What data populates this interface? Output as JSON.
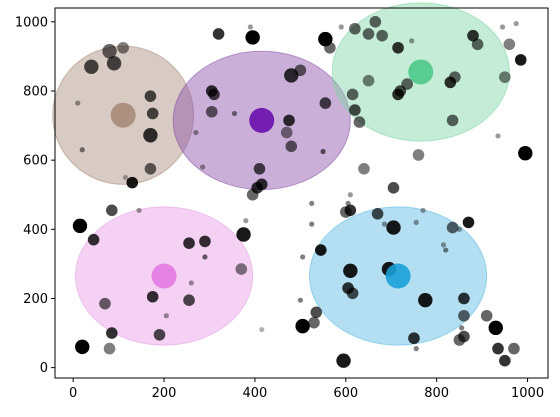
{
  "chart_data": {
    "type": "scatter",
    "title": "",
    "xlabel": "",
    "ylabel": "",
    "xlim": [
      -40,
      1045
    ],
    "ylim": [
      -30,
      1040
    ],
    "x_ticks": [
      0,
      200,
      400,
      600,
      800,
      1000
    ],
    "y_ticks": [
      0,
      200,
      400,
      600,
      800,
      1000
    ],
    "grid": false,
    "legend": "none",
    "clusters": [
      {
        "center": [
          110,
          730
        ],
        "radius_x": 155,
        "radius_y": 200,
        "fill": "#a88b79",
        "center_color": "#a88b79"
      },
      {
        "center": [
          415,
          715
        ],
        "radius_x": 195,
        "radius_y": 200,
        "fill": "#8a4fa8",
        "center_color": "#6a0dad"
      },
      {
        "center": [
          765,
          855
        ],
        "radius_x": 195,
        "radius_y": 200,
        "fill": "#7fd4a4",
        "center_color": "#4cc98a"
      },
      {
        "center": [
          200,
          265
        ],
        "radius_x": 195,
        "radius_y": 200,
        "fill": "#e89be6",
        "center_color": "#e27ae0"
      },
      {
        "center": [
          715,
          265
        ],
        "radius_x": 195,
        "radius_y": 200,
        "fill": "#58b8e3",
        "center_color": "#1aa0d8"
      }
    ],
    "points": [
      {
        "x": 80,
        "y": 915,
        "size": "m",
        "alpha": 0.6
      },
      {
        "x": 90,
        "y": 880,
        "size": "m",
        "alpha": 0.7
      },
      {
        "x": 40,
        "y": 870,
        "size": "m",
        "alpha": 0.7
      },
      {
        "x": 110,
        "y": 925,
        "size": "s",
        "alpha": 0.5
      },
      {
        "x": 170,
        "y": 785,
        "size": "s",
        "alpha": 0.7
      },
      {
        "x": 175,
        "y": 735,
        "size": "s",
        "alpha": 0.7
      },
      {
        "x": 170,
        "y": 672,
        "size": "m",
        "alpha": 0.8
      },
      {
        "x": 10,
        "y": 765,
        "size": "xs",
        "alpha": 0.4
      },
      {
        "x": 20,
        "y": 630,
        "size": "xs",
        "alpha": 0.5
      },
      {
        "x": 170,
        "y": 575,
        "size": "s",
        "alpha": 0.6
      },
      {
        "x": 130,
        "y": 535,
        "size": "s",
        "alpha": 0.9
      },
      {
        "x": 115,
        "y": 550,
        "size": "xs",
        "alpha": 0.3
      },
      {
        "x": 320,
        "y": 965,
        "size": "s",
        "alpha": 0.8
      },
      {
        "x": 390,
        "y": 985,
        "size": "xs",
        "alpha": 0.4
      },
      {
        "x": 395,
        "y": 955,
        "size": "m",
        "alpha": 1.0
      },
      {
        "x": 305,
        "y": 800,
        "size": "s",
        "alpha": 0.8
      },
      {
        "x": 310,
        "y": 790,
        "size": "s",
        "alpha": 0.7
      },
      {
        "x": 305,
        "y": 740,
        "size": "s",
        "alpha": 0.6
      },
      {
        "x": 355,
        "y": 735,
        "size": "xs",
        "alpha": 0.5
      },
      {
        "x": 480,
        "y": 845,
        "size": "m",
        "alpha": 0.8
      },
      {
        "x": 500,
        "y": 860,
        "size": "s",
        "alpha": 0.6
      },
      {
        "x": 555,
        "y": 765,
        "size": "s",
        "alpha": 0.7
      },
      {
        "x": 475,
        "y": 715,
        "size": "s",
        "alpha": 0.8
      },
      {
        "x": 470,
        "y": 680,
        "size": "s",
        "alpha": 0.5
      },
      {
        "x": 480,
        "y": 640,
        "size": "s",
        "alpha": 0.6
      },
      {
        "x": 550,
        "y": 625,
        "size": "xs",
        "alpha": 0.6
      },
      {
        "x": 410,
        "y": 575,
        "size": "s",
        "alpha": 0.7
      },
      {
        "x": 415,
        "y": 530,
        "size": "s",
        "alpha": 0.8
      },
      {
        "x": 405,
        "y": 520,
        "size": "s",
        "alpha": 0.8
      },
      {
        "x": 395,
        "y": 500,
        "size": "s",
        "alpha": 0.6
      },
      {
        "x": 270,
        "y": 680,
        "size": "xs",
        "alpha": 0.4
      },
      {
        "x": 285,
        "y": 580,
        "size": "xs",
        "alpha": 0.4
      },
      {
        "x": 555,
        "y": 950,
        "size": "m",
        "alpha": 1.0
      },
      {
        "x": 565,
        "y": 925,
        "size": "s",
        "alpha": 0.6
      },
      {
        "x": 590,
        "y": 985,
        "size": "xs",
        "alpha": 0.4
      },
      {
        "x": 620,
        "y": 980,
        "size": "s",
        "alpha": 0.6
      },
      {
        "x": 650,
        "y": 965,
        "size": "s",
        "alpha": 0.6
      },
      {
        "x": 665,
        "y": 1000,
        "size": "s",
        "alpha": 0.6
      },
      {
        "x": 680,
        "y": 960,
        "size": "s",
        "alpha": 0.6
      },
      {
        "x": 715,
        "y": 925,
        "size": "s",
        "alpha": 0.8
      },
      {
        "x": 745,
        "y": 945,
        "size": "xs",
        "alpha": 0.4
      },
      {
        "x": 650,
        "y": 830,
        "size": "s",
        "alpha": 0.5
      },
      {
        "x": 615,
        "y": 790,
        "size": "s",
        "alpha": 0.6
      },
      {
        "x": 620,
        "y": 745,
        "size": "s",
        "alpha": 0.7
      },
      {
        "x": 630,
        "y": 710,
        "size": "s",
        "alpha": 0.6
      },
      {
        "x": 715,
        "y": 790,
        "size": "s",
        "alpha": 0.8
      },
      {
        "x": 720,
        "y": 800,
        "size": "s",
        "alpha": 0.7
      },
      {
        "x": 735,
        "y": 820,
        "size": "s",
        "alpha": 0.6
      },
      {
        "x": 830,
        "y": 825,
        "size": "s",
        "alpha": 0.8
      },
      {
        "x": 840,
        "y": 840,
        "size": "s",
        "alpha": 0.6
      },
      {
        "x": 835,
        "y": 715,
        "size": "s",
        "alpha": 0.6
      },
      {
        "x": 880,
        "y": 960,
        "size": "s",
        "alpha": 0.8
      },
      {
        "x": 890,
        "y": 935,
        "size": "s",
        "alpha": 0.6
      },
      {
        "x": 945,
        "y": 985,
        "size": "xs",
        "alpha": 0.4
      },
      {
        "x": 960,
        "y": 935,
        "size": "s",
        "alpha": 0.5
      },
      {
        "x": 950,
        "y": 840,
        "size": "s",
        "alpha": 0.5
      },
      {
        "x": 975,
        "y": 995,
        "size": "xs",
        "alpha": 0.4
      },
      {
        "x": 985,
        "y": 890,
        "size": "s",
        "alpha": 0.9
      },
      {
        "x": 995,
        "y": 620,
        "size": "m",
        "alpha": 1.0
      },
      {
        "x": 935,
        "y": 670,
        "size": "xs",
        "alpha": 0.4
      },
      {
        "x": 760,
        "y": 615,
        "size": "s",
        "alpha": 0.5
      },
      {
        "x": 640,
        "y": 575,
        "size": "s",
        "alpha": 0.5
      },
      {
        "x": 705,
        "y": 520,
        "size": "s",
        "alpha": 0.7
      },
      {
        "x": 610,
        "y": 500,
        "size": "xs",
        "alpha": 0.4
      },
      {
        "x": 605,
        "y": 475,
        "size": "xs",
        "alpha": 0.5
      },
      {
        "x": 610,
        "y": 455,
        "size": "s",
        "alpha": 0.8
      },
      {
        "x": 600,
        "y": 450,
        "size": "s",
        "alpha": 0.6
      },
      {
        "x": 670,
        "y": 445,
        "size": "s",
        "alpha": 0.7
      },
      {
        "x": 525,
        "y": 475,
        "size": "xs",
        "alpha": 0.5
      },
      {
        "x": 525,
        "y": 415,
        "size": "xs",
        "alpha": 0.5
      },
      {
        "x": 15,
        "y": 410,
        "size": "m",
        "alpha": 1.0
      },
      {
        "x": 85,
        "y": 455,
        "size": "s",
        "alpha": 0.7
      },
      {
        "x": 145,
        "y": 455,
        "size": "xs",
        "alpha": 0.4
      },
      {
        "x": 45,
        "y": 370,
        "size": "s",
        "alpha": 0.8
      },
      {
        "x": 255,
        "y": 360,
        "size": "s",
        "alpha": 0.8
      },
      {
        "x": 290,
        "y": 365,
        "size": "s",
        "alpha": 0.8
      },
      {
        "x": 290,
        "y": 320,
        "size": "xs",
        "alpha": 0.6
      },
      {
        "x": 375,
        "y": 385,
        "size": "m",
        "alpha": 0.9
      },
      {
        "x": 380,
        "y": 425,
        "size": "xs",
        "alpha": 0.4
      },
      {
        "x": 370,
        "y": 285,
        "size": "s",
        "alpha": 0.5
      },
      {
        "x": 260,
        "y": 245,
        "size": "xs",
        "alpha": 0.4
      },
      {
        "x": 255,
        "y": 195,
        "size": "s",
        "alpha": 0.7
      },
      {
        "x": 175,
        "y": 205,
        "size": "s",
        "alpha": 0.8
      },
      {
        "x": 205,
        "y": 150,
        "size": "xs",
        "alpha": 0.4
      },
      {
        "x": 70,
        "y": 185,
        "size": "s",
        "alpha": 0.6
      },
      {
        "x": 85,
        "y": 100,
        "size": "s",
        "alpha": 0.8
      },
      {
        "x": 80,
        "y": 55,
        "size": "s",
        "alpha": 0.5
      },
      {
        "x": 190,
        "y": 95,
        "size": "s",
        "alpha": 0.7
      },
      {
        "x": 20,
        "y": 60,
        "size": "m",
        "alpha": 1.0
      },
      {
        "x": 415,
        "y": 110,
        "size": "xs",
        "alpha": 0.3
      },
      {
        "x": 500,
        "y": 195,
        "size": "xs",
        "alpha": 0.5
      },
      {
        "x": 505,
        "y": 320,
        "size": "xs",
        "alpha": 0.5
      },
      {
        "x": 535,
        "y": 160,
        "size": "s",
        "alpha": 0.7
      },
      {
        "x": 530,
        "y": 130,
        "size": "s",
        "alpha": 0.6
      },
      {
        "x": 505,
        "y": 120,
        "size": "m",
        "alpha": 1.0
      },
      {
        "x": 595,
        "y": 20,
        "size": "m",
        "alpha": 0.9
      },
      {
        "x": 545,
        "y": 340,
        "size": "s",
        "alpha": 0.9
      },
      {
        "x": 610,
        "y": 280,
        "size": "m",
        "alpha": 0.9
      },
      {
        "x": 605,
        "y": 230,
        "size": "s",
        "alpha": 0.8
      },
      {
        "x": 615,
        "y": 215,
        "size": "s",
        "alpha": 0.7
      },
      {
        "x": 695,
        "y": 285,
        "size": "m",
        "alpha": 0.9
      },
      {
        "x": 705,
        "y": 405,
        "size": "m",
        "alpha": 0.9
      },
      {
        "x": 685,
        "y": 415,
        "size": "xs",
        "alpha": 0.4
      },
      {
        "x": 755,
        "y": 420,
        "size": "xs",
        "alpha": 0.4
      },
      {
        "x": 770,
        "y": 455,
        "size": "xs",
        "alpha": 0.4
      },
      {
        "x": 775,
        "y": 195,
        "size": "m",
        "alpha": 0.9
      },
      {
        "x": 750,
        "y": 85,
        "size": "s",
        "alpha": 0.8
      },
      {
        "x": 755,
        "y": 55,
        "size": "xs",
        "alpha": 0.5
      },
      {
        "x": 815,
        "y": 355,
        "size": "xs",
        "alpha": 0.4
      },
      {
        "x": 820,
        "y": 340,
        "size": "xs",
        "alpha": 0.5
      },
      {
        "x": 835,
        "y": 405,
        "size": "s",
        "alpha": 0.6
      },
      {
        "x": 850,
        "y": 400,
        "size": "xs",
        "alpha": 0.4
      },
      {
        "x": 870,
        "y": 420,
        "size": "s",
        "alpha": 0.9
      },
      {
        "x": 860,
        "y": 200,
        "size": "s",
        "alpha": 0.8
      },
      {
        "x": 860,
        "y": 150,
        "size": "s",
        "alpha": 0.6
      },
      {
        "x": 855,
        "y": 115,
        "size": "xs",
        "alpha": 0.5
      },
      {
        "x": 850,
        "y": 80,
        "size": "s",
        "alpha": 0.6
      },
      {
        "x": 860,
        "y": 90,
        "size": "s",
        "alpha": 0.7
      },
      {
        "x": 910,
        "y": 150,
        "size": "s",
        "alpha": 0.6
      },
      {
        "x": 930,
        "y": 115,
        "size": "m",
        "alpha": 1.0
      },
      {
        "x": 935,
        "y": 55,
        "size": "s",
        "alpha": 0.8
      },
      {
        "x": 950,
        "y": 20,
        "size": "s",
        "alpha": 0.8
      },
      {
        "x": 970,
        "y": 55,
        "size": "s",
        "alpha": 0.6
      }
    ]
  }
}
